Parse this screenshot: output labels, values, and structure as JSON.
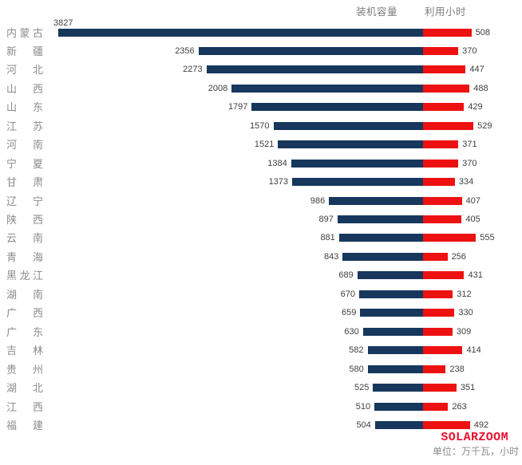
{
  "header": {
    "capacity_label": "装机容量",
    "hours_label": "利用小时"
  },
  "footer": {
    "brand": "SOLARZOOM",
    "unit_note": "单位：万千瓦，小时"
  },
  "colors": {
    "capacity_bar": "#17375d",
    "hours_bar": "#ee1111",
    "brand_red": "#e8112d",
    "label_gray": "#8c8c8c",
    "value_text": "#3f3f3f"
  },
  "chart_data": {
    "type": "bar",
    "subtype": "tornado",
    "title": "",
    "categories": [
      "内蒙古",
      "新疆",
      "河北",
      "山西",
      "山东",
      "江苏",
      "河南",
      "宁夏",
      "甘肃",
      "辽宁",
      "陕西",
      "云南",
      "青海",
      "黑龙江",
      "湖南",
      "广西",
      "广东",
      "吉林",
      "贵州",
      "湖北",
      "江西",
      "福建"
    ],
    "series": [
      {
        "name": "装机容量",
        "direction": "left",
        "color": "#17375d",
        "values": [
          3827,
          2356,
          2273,
          2008,
          1797,
          1570,
          1521,
          1384,
          1373,
          986,
          897,
          881,
          843,
          689,
          670,
          659,
          630,
          582,
          580,
          525,
          510,
          504
        ]
      },
      {
        "name": "利用小时",
        "direction": "right",
        "color": "#ee1111",
        "values": [
          508,
          370,
          447,
          488,
          429,
          529,
          371,
          370,
          334,
          407,
          405,
          555,
          256,
          431,
          312,
          330,
          309,
          414,
          238,
          351,
          263,
          492
        ]
      }
    ],
    "unit": "万千瓦，小时",
    "axis": {
      "shared_center": true,
      "xmax": 3827,
      "gridlines": false,
      "legend_position": "top",
      "value_labels": "outside-end"
    }
  }
}
